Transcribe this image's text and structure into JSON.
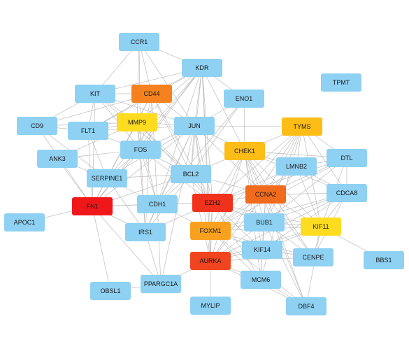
{
  "graph": {
    "edge_color": "#bdbdbd",
    "nodes": [
      {
        "id": "CCR1",
        "label": "CCR1",
        "color": "#8ed1f2"
      },
      {
        "id": "KDR",
        "label": "KDR",
        "color": "#8ed1f2"
      },
      {
        "id": "TPMT",
        "label": "TPMT",
        "color": "#8ed1f2"
      },
      {
        "id": "KIT",
        "label": "KIT",
        "color": "#8ed1f2"
      },
      {
        "id": "CD44",
        "label": "CD44",
        "color": "#f5821f"
      },
      {
        "id": "ENO1",
        "label": "ENO1",
        "color": "#8ed1f2"
      },
      {
        "id": "MMP9",
        "label": "MMP9",
        "color": "#ffdc1f"
      },
      {
        "id": "CD9",
        "label": "CD9",
        "color": "#8ed1f2"
      },
      {
        "id": "FLT1",
        "label": "FLT1",
        "color": "#8ed1f2"
      },
      {
        "id": "JUN",
        "label": "JUN",
        "color": "#8ed1f2"
      },
      {
        "id": "TYMS",
        "label": "TYMS",
        "color": "#fdbd16"
      },
      {
        "id": "FOS",
        "label": "FOS",
        "color": "#8ed1f2"
      },
      {
        "id": "CHEK1",
        "label": "CHEK1",
        "color": "#fdbd16"
      },
      {
        "id": "ANK3",
        "label": "ANK3",
        "color": "#8ed1f2"
      },
      {
        "id": "DTL",
        "label": "DTL",
        "color": "#8ed1f2"
      },
      {
        "id": "LMNB2",
        "label": "LMNB2",
        "color": "#8ed1f2"
      },
      {
        "id": "BCL2",
        "label": "BCL2",
        "color": "#8ed1f2"
      },
      {
        "id": "SERPINE1",
        "label": "SERPINE1",
        "color": "#8ed1f2"
      },
      {
        "id": "CCNA2",
        "label": "CCNA2",
        "color": "#f26b1d"
      },
      {
        "id": "CDCA8",
        "label": "CDCA8",
        "color": "#8ed1f2"
      },
      {
        "id": "EZH2",
        "label": "EZH2",
        "color": "#f0311c"
      },
      {
        "id": "FN1",
        "label": "FN1",
        "color": "#f0171b"
      },
      {
        "id": "CDH1",
        "label": "CDH1",
        "color": "#8ed1f2"
      },
      {
        "id": "APOC1",
        "label": "APOC1",
        "color": "#8ed1f2"
      },
      {
        "id": "BUB1",
        "label": "BUB1",
        "color": "#8ed1f2"
      },
      {
        "id": "KIF11",
        "label": "KIF11",
        "color": "#ffdc1f"
      },
      {
        "id": "IRS1",
        "label": "IRS1",
        "color": "#8ed1f2"
      },
      {
        "id": "FOXM1",
        "label": "FOXM1",
        "color": "#f8a11e"
      },
      {
        "id": "KIF14",
        "label": "KIF14",
        "color": "#8ed1f2"
      },
      {
        "id": "CENPE",
        "label": "CENPE",
        "color": "#8ed1f2"
      },
      {
        "id": "BBS1",
        "label": "BBS1",
        "color": "#8ed1f2"
      },
      {
        "id": "AURKA",
        "label": "AURKA",
        "color": "#f0451f"
      },
      {
        "id": "MCM6",
        "label": "MCM6",
        "color": "#8ed1f2"
      },
      {
        "id": "OBSL1",
        "label": "OBSL1",
        "color": "#8ed1f2"
      },
      {
        "id": "PPARGC1A",
        "label": "PPARGC1A",
        "color": "#8ed1f2"
      },
      {
        "id": "MYLIP",
        "label": "MYLIP",
        "color": "#8ed1f2"
      },
      {
        "id": "DBF4",
        "label": "DBF4",
        "color": "#8ed1f2"
      }
    ],
    "edges": [
      [
        "CCR1",
        "KDR"
      ],
      [
        "CCR1",
        "MMP9"
      ],
      [
        "CCR1",
        "FOS"
      ],
      [
        "CCR1",
        "JUN"
      ],
      [
        "CCR1",
        "CD44"
      ],
      [
        "CCR1",
        "KIT"
      ],
      [
        "KDR",
        "KIT"
      ],
      [
        "KDR",
        "CD44"
      ],
      [
        "KDR",
        "MMP9"
      ],
      [
        "KDR",
        "FLT1"
      ],
      [
        "KDR",
        "JUN"
      ],
      [
        "KDR",
        "FOS"
      ],
      [
        "KDR",
        "BCL2"
      ],
      [
        "KDR",
        "CDH1"
      ],
      [
        "KDR",
        "SERPINE1"
      ],
      [
        "KDR",
        "FN1"
      ],
      [
        "KDR",
        "EZH2"
      ],
      [
        "KDR",
        "CHEK1"
      ],
      [
        "KDR",
        "AURKA"
      ],
      [
        "KDR",
        "FOXM1"
      ],
      [
        "KDR",
        "ENO1"
      ],
      [
        "KIT",
        "CD44"
      ],
      [
        "KIT",
        "MMP9"
      ],
      [
        "KIT",
        "FLT1"
      ],
      [
        "KIT",
        "FOS"
      ],
      [
        "KIT",
        "BCL2"
      ],
      [
        "KIT",
        "FN1"
      ],
      [
        "KIT",
        "CD9"
      ],
      [
        "KIT",
        "JUN"
      ],
      [
        "CD44",
        "MMP9"
      ],
      [
        "CD44",
        "FN1"
      ],
      [
        "CD44",
        "JUN"
      ],
      [
        "CD44",
        "FOS"
      ],
      [
        "CD44",
        "BCL2"
      ],
      [
        "CD44",
        "CDH1"
      ],
      [
        "CD44",
        "SERPINE1"
      ],
      [
        "CD44",
        "EZH2"
      ],
      [
        "CD44",
        "FLT1"
      ],
      [
        "CD44",
        "CD9"
      ],
      [
        "CD44",
        "IRS1"
      ],
      [
        "MMP9",
        "FN1"
      ],
      [
        "MMP9",
        "JUN"
      ],
      [
        "MMP9",
        "FOS"
      ],
      [
        "MMP9",
        "SERPINE1"
      ],
      [
        "MMP9",
        "CDH1"
      ],
      [
        "MMP9",
        "BCL2"
      ],
      [
        "MMP9",
        "CD9"
      ],
      [
        "MMP9",
        "FLT1"
      ],
      [
        "MMP9",
        "EZH2"
      ],
      [
        "MMP9",
        "ANK3"
      ],
      [
        "MMP9",
        "IRS1"
      ],
      [
        "ENO1",
        "JUN"
      ],
      [
        "ENO1",
        "CHEK1"
      ],
      [
        "ENO1",
        "BCL2"
      ],
      [
        "ENO1",
        "CDH1"
      ],
      [
        "CD9",
        "FN1"
      ],
      [
        "CD9",
        "FLT1"
      ],
      [
        "CD9",
        "SERPINE1"
      ],
      [
        "FLT1",
        "FN1"
      ],
      [
        "FLT1",
        "SERPINE1"
      ],
      [
        "FLT1",
        "FOS"
      ],
      [
        "FLT1",
        "JUN"
      ],
      [
        "JUN",
        "FOS"
      ],
      [
        "JUN",
        "BCL2"
      ],
      [
        "JUN",
        "FN1"
      ],
      [
        "JUN",
        "CDH1"
      ],
      [
        "JUN",
        "SERPINE1"
      ],
      [
        "JUN",
        "EZH2"
      ],
      [
        "JUN",
        "CCNA2"
      ],
      [
        "JUN",
        "CHEK1"
      ],
      [
        "JUN",
        "IRS1"
      ],
      [
        "JUN",
        "AURKA"
      ],
      [
        "JUN",
        "FOXM1"
      ],
      [
        "JUN",
        "PPARGC1A"
      ],
      [
        "TYMS",
        "CHEK1"
      ],
      [
        "TYMS",
        "CCNA2"
      ],
      [
        "TYMS",
        "DTL"
      ],
      [
        "TYMS",
        "LMNB2"
      ],
      [
        "TYMS",
        "KIF11"
      ],
      [
        "TYMS",
        "EZH2"
      ],
      [
        "TYMS",
        "BUB1"
      ],
      [
        "TYMS",
        "FOXM1"
      ],
      [
        "TYMS",
        "AURKA"
      ],
      [
        "TYMS",
        "MCM6"
      ],
      [
        "TYMS",
        "CDCA8"
      ],
      [
        "TYMS",
        "JUN"
      ],
      [
        "FOS",
        "FN1"
      ],
      [
        "FOS",
        "BCL2"
      ],
      [
        "FOS",
        "CDH1"
      ],
      [
        "FOS",
        "SERPINE1"
      ],
      [
        "FOS",
        "ANK3"
      ],
      [
        "FOS",
        "IRS1"
      ],
      [
        "FOS",
        "EZH2"
      ],
      [
        "CHEK1",
        "CCNA2"
      ],
      [
        "CHEK1",
        "EZH2"
      ],
      [
        "CHEK1",
        "BUB1"
      ],
      [
        "CHEK1",
        "KIF11"
      ],
      [
        "CHEK1",
        "FOXM1"
      ],
      [
        "CHEK1",
        "AURKA"
      ],
      [
        "CHEK1",
        "DTL"
      ],
      [
        "CHEK1",
        "LMNB2"
      ],
      [
        "CHEK1",
        "CDCA8"
      ],
      [
        "CHEK1",
        "MCM6"
      ],
      [
        "CHEK1",
        "KIF14"
      ],
      [
        "CHEK1",
        "CENPE"
      ],
      [
        "CHEK1",
        "DBF4"
      ],
      [
        "CHEK1",
        "BCL2"
      ],
      [
        "ANK3",
        "FN1"
      ],
      [
        "ANK3",
        "SERPINE1"
      ],
      [
        "DTL",
        "CCNA2"
      ],
      [
        "DTL",
        "KIF11"
      ],
      [
        "DTL",
        "BUB1"
      ],
      [
        "DTL",
        "CDCA8"
      ],
      [
        "DTL",
        "FOXM1"
      ],
      [
        "DTL",
        "EZH2"
      ],
      [
        "DTL",
        "LMNB2"
      ],
      [
        "LMNB2",
        "CCNA2"
      ],
      [
        "LMNB2",
        "KIF11"
      ],
      [
        "LMNB2",
        "BUB1"
      ],
      [
        "LMNB2",
        "FOXM1"
      ],
      [
        "LMNB2",
        "CDCA8"
      ],
      [
        "LMNB2",
        "EZH2"
      ],
      [
        "BCL2",
        "FN1"
      ],
      [
        "BCL2",
        "CDH1"
      ],
      [
        "BCL2",
        "EZH2"
      ],
      [
        "BCL2",
        "SERPINE1"
      ],
      [
        "BCL2",
        "IRS1"
      ],
      [
        "BCL2",
        "CCNA2"
      ],
      [
        "BCL2",
        "AURKA"
      ],
      [
        "SERPINE1",
        "FN1"
      ],
      [
        "SERPINE1",
        "CDH1"
      ],
      [
        "SERPINE1",
        "IRS1"
      ],
      [
        "CCNA2",
        "EZH2"
      ],
      [
        "CCNA2",
        "BUB1"
      ],
      [
        "CCNA2",
        "KIF11"
      ],
      [
        "CCNA2",
        "FOXM1"
      ],
      [
        "CCNA2",
        "AURKA"
      ],
      [
        "CCNA2",
        "CDCA8"
      ],
      [
        "CCNA2",
        "KIF14"
      ],
      [
        "CCNA2",
        "CENPE"
      ],
      [
        "CCNA2",
        "MCM6"
      ],
      [
        "CCNA2",
        "DBF4"
      ],
      [
        "CDCA8",
        "KIF11"
      ],
      [
        "CDCA8",
        "BUB1"
      ],
      [
        "CDCA8",
        "FOXM1"
      ],
      [
        "CDCA8",
        "AURKA"
      ],
      [
        "CDCA8",
        "CENPE"
      ],
      [
        "CDCA8",
        "KIF14"
      ],
      [
        "EZH2",
        "FN1"
      ],
      [
        "EZH2",
        "CDH1"
      ],
      [
        "EZH2",
        "FOXM1"
      ],
      [
        "EZH2",
        "AURKA"
      ],
      [
        "EZH2",
        "BUB1"
      ],
      [
        "EZH2",
        "KIF11"
      ],
      [
        "EZH2",
        "IRS1"
      ],
      [
        "EZH2",
        "MCM6"
      ],
      [
        "EZH2",
        "KIF14"
      ],
      [
        "FN1",
        "CDH1"
      ],
      [
        "FN1",
        "APOC1"
      ],
      [
        "FN1",
        "IRS1"
      ],
      [
        "FN1",
        "OBSL1"
      ],
      [
        "FN1",
        "PPARGC1A"
      ],
      [
        "CDH1",
        "IRS1"
      ],
      [
        "CDH1",
        "FOXM1"
      ],
      [
        "CDH1",
        "PPARGC1A"
      ],
      [
        "BUB1",
        "KIF11"
      ],
      [
        "BUB1",
        "FOXM1"
      ],
      [
        "BUB1",
        "AURKA"
      ],
      [
        "BUB1",
        "KIF14"
      ],
      [
        "BUB1",
        "CENPE"
      ],
      [
        "BUB1",
        "MCM6"
      ],
      [
        "BUB1",
        "DBF4"
      ],
      [
        "KIF11",
        "FOXM1"
      ],
      [
        "KIF11",
        "AURKA"
      ],
      [
        "KIF11",
        "KIF14"
      ],
      [
        "KIF11",
        "CENPE"
      ],
      [
        "KIF11",
        "BBS1"
      ],
      [
        "KIF11",
        "DBF4"
      ],
      [
        "IRS1",
        "PPARGC1A"
      ],
      [
        "FOXM1",
        "AURKA"
      ],
      [
        "FOXM1",
        "KIF14"
      ],
      [
        "FOXM1",
        "CENPE"
      ],
      [
        "FOXM1",
        "MCM6"
      ],
      [
        "FOXM1",
        "DBF4"
      ],
      [
        "KIF14",
        "CENPE"
      ],
      [
        "KIF14",
        "AURKA"
      ],
      [
        "CENPE",
        "AURKA"
      ],
      [
        "AURKA",
        "MCM6"
      ],
      [
        "AURKA",
        "MYLIP"
      ],
      [
        "AURKA",
        "DBF4"
      ],
      [
        "AURKA",
        "PPARGC1A"
      ],
      [
        "MCM6",
        "DBF4"
      ],
      [
        "OBSL1",
        "PPARGC1A"
      ]
    ]
  }
}
